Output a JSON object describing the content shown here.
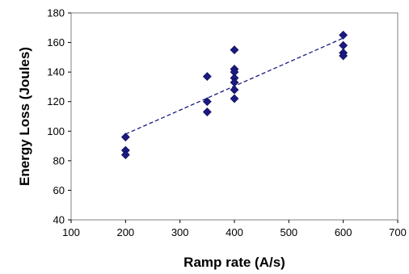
{
  "chart_data": {
    "type": "scatter",
    "title": "",
    "xlabel": "Ramp rate (A/s)",
    "ylabel": "Energy Loss (Joules)",
    "xlim": [
      100,
      700
    ],
    "ylim": [
      40,
      180
    ],
    "x_ticks": [
      100,
      200,
      300,
      400,
      500,
      600,
      700
    ],
    "y_ticks": [
      40,
      60,
      80,
      100,
      120,
      140,
      160,
      180
    ],
    "grid": false,
    "legend": "none",
    "marker_color": "#1a1a80",
    "series": [
      {
        "name": "",
        "points": [
          {
            "x": 200,
            "y": 96
          },
          {
            "x": 200,
            "y": 87
          },
          {
            "x": 200,
            "y": 84
          },
          {
            "x": 350,
            "y": 137
          },
          {
            "x": 350,
            "y": 120
          },
          {
            "x": 350,
            "y": 113
          },
          {
            "x": 400,
            "y": 155
          },
          {
            "x": 400,
            "y": 142
          },
          {
            "x": 400,
            "y": 140
          },
          {
            "x": 400,
            "y": 136
          },
          {
            "x": 400,
            "y": 133
          },
          {
            "x": 400,
            "y": 128
          },
          {
            "x": 400,
            "y": 122
          },
          {
            "x": 600,
            "y": 165
          },
          {
            "x": 600,
            "y": 158
          },
          {
            "x": 600,
            "y": 153
          },
          {
            "x": 600,
            "y": 151
          }
        ]
      }
    ],
    "trendline": {
      "style": "dashed",
      "color": "#1a1a80",
      "from": {
        "x": 200,
        "y": 98
      },
      "to": {
        "x": 600,
        "y": 163
      }
    }
  }
}
